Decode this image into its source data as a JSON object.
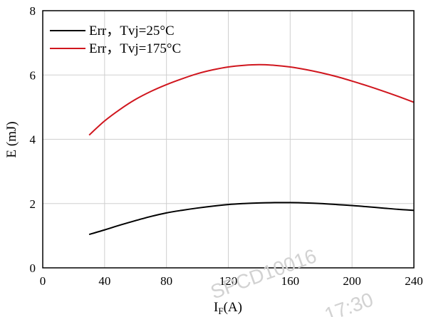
{
  "chart_data": {
    "type": "line",
    "xlabel": {
      "main": "I",
      "sub": "F",
      "rest": "(A)"
    },
    "ylabel": "E (mJ)",
    "xlim": [
      0,
      240
    ],
    "ylim": [
      0,
      8
    ],
    "xticks": [
      0,
      40,
      80,
      120,
      160,
      200,
      240
    ],
    "yticks": [
      0,
      2,
      4,
      6,
      8
    ],
    "grid": true,
    "legend_position": "top-left",
    "series": [
      {
        "name": "Err，Tvj=25°C",
        "color": "#000000",
        "x": [
          30,
          40,
          50,
          60,
          70,
          80,
          90,
          100,
          110,
          120,
          130,
          140,
          150,
          160,
          170,
          180,
          190,
          200,
          210,
          220,
          230,
          240
        ],
        "y": [
          1.04,
          1.18,
          1.33,
          1.47,
          1.6,
          1.71,
          1.79,
          1.86,
          1.92,
          1.97,
          2.0,
          2.02,
          2.03,
          2.03,
          2.02,
          2.0,
          1.97,
          1.94,
          1.9,
          1.86,
          1.82,
          1.79
        ]
      },
      {
        "name": "Err，Tvj=175°C",
        "color": "#d0161e",
        "x": [
          30,
          40,
          50,
          60,
          70,
          80,
          90,
          100,
          110,
          120,
          130,
          140,
          150,
          160,
          170,
          180,
          190,
          200,
          210,
          220,
          230,
          240
        ],
        "y": [
          4.13,
          4.57,
          4.93,
          5.24,
          5.49,
          5.7,
          5.88,
          6.04,
          6.16,
          6.25,
          6.3,
          6.32,
          6.3,
          6.25,
          6.17,
          6.07,
          5.95,
          5.81,
          5.66,
          5.5,
          5.33,
          5.15
        ]
      }
    ]
  },
  "watermarks": [
    "SPCD10016",
    "17:30"
  ]
}
